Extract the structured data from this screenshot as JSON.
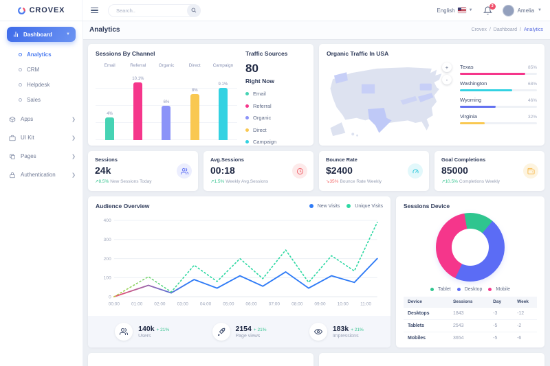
{
  "brand": {
    "name": "CROVEX"
  },
  "topbar": {
    "search_placeholder": "Search..",
    "language_label": "English",
    "notification_count": "3",
    "user_name": "Amelia"
  },
  "page_header": {
    "title": "Analytics",
    "breadcrumb": [
      "Crovex",
      "Dashboard",
      "Analytics"
    ]
  },
  "sidebar": {
    "dashboard": {
      "label": "Dashboard",
      "children": [
        {
          "label": "Analytics",
          "active": true
        },
        {
          "label": "CRM",
          "active": false
        },
        {
          "label": "Helpdesk",
          "active": false
        },
        {
          "label": "Sales",
          "active": false
        }
      ]
    },
    "items": [
      {
        "label": "Apps",
        "icon": "box-icon"
      },
      {
        "label": "UI Kit",
        "icon": "briefcase-icon"
      },
      {
        "label": "Pages",
        "icon": "pages-icon"
      },
      {
        "label": "Authentication",
        "icon": "lock-icon"
      }
    ]
  },
  "sessions_by_channel": {
    "title": "Sessions By Channel"
  },
  "traffic_sources": {
    "title": "Traffic Sources",
    "value": "80",
    "subtitle": "Right Now",
    "legend": [
      {
        "label": "Email",
        "color": "#46d3b4"
      },
      {
        "label": "Referral",
        "color": "#f5368b"
      },
      {
        "label": "Organic",
        "color": "#8b93f8"
      },
      {
        "label": "Direct",
        "color": "#f9c851"
      },
      {
        "label": "Campaign",
        "color": "#33d2e2"
      }
    ]
  },
  "organic_traffic_usa": {
    "title": "Organic Traffic In USA",
    "zoom_in": "+",
    "zoom_out": "-",
    "regions": [
      {
        "name": "Texas",
        "value": "85%",
        "pct": 85,
        "color": "#f5368b"
      },
      {
        "name": "Washington",
        "value": "68%",
        "pct": 68,
        "color": "#33d2e2"
      },
      {
        "name": "Wyoming",
        "value": "46%",
        "pct": 46,
        "color": "#6271f0"
      },
      {
        "name": "Virginia",
        "value": "32%",
        "pct": 32,
        "color": "#f9c851"
      }
    ]
  },
  "stats": [
    {
      "title": "Sessions",
      "value": "24k",
      "trend": "8.5%",
      "trend_dir": "up",
      "note": "New Sessions Today",
      "icon": "users-icon",
      "accent": "#5b6ef5",
      "accent_bg": "#eceefe"
    },
    {
      "title": "Avg.Sessions",
      "value": "00:18",
      "trend": "1.5%",
      "trend_dir": "up",
      "note": "Weekly Avg.Sessions",
      "icon": "clock-icon",
      "accent": "#f0616a",
      "accent_bg": "#fdeaea"
    },
    {
      "title": "Bounce Rate",
      "value": "$2400",
      "trend": "35%",
      "trend_dir": "down",
      "note": "Bounce Rate Weekly",
      "icon": "gauge-icon",
      "accent": "#2fc8dc",
      "accent_bg": "#e2f8fb"
    },
    {
      "title": "Goal Completions",
      "value": "85000",
      "trend": "10.5%",
      "trend_dir": "up",
      "note": "Completions Weekly",
      "icon": "wallet-icon",
      "accent": "#f7b84b",
      "accent_bg": "#fdf4e0"
    }
  ],
  "audience_overview": {
    "title": "Audience Overview",
    "footer": [
      {
        "value": "140k",
        "trend": "+ 21%",
        "label": "Users",
        "icon": "users-icon"
      },
      {
        "value": "2154",
        "trend": "+ 21%",
        "label": "Page views",
        "icon": "rocket-icon"
      },
      {
        "value": "183k",
        "trend": "+ 21%",
        "label": "Impressions",
        "icon": "eye-icon"
      }
    ]
  },
  "sessions_device": {
    "title": "Sessions Device"
  },
  "chart_data": [
    {
      "id": "sessions_by_channel",
      "type": "bar",
      "title": "Sessions By Channel",
      "categories": [
        "Email",
        "Referral",
        "Organic",
        "Direct",
        "Campaign"
      ],
      "values": [
        4,
        10.1,
        6,
        8,
        9.1
      ],
      "value_labels": [
        "4%",
        "10.1%",
        "6%",
        "8%",
        "9.1%"
      ],
      "colors": [
        "#46d3b4",
        "#f5368b",
        "#8b93f8",
        "#f9c851",
        "#33d2e2"
      ],
      "ylim": [
        0,
        12
      ],
      "unit": "%",
      "grid": true
    },
    {
      "id": "organic_traffic_usa",
      "type": "bar",
      "orientation": "horizontal",
      "title": "Organic Traffic In USA",
      "categories": [
        "Texas",
        "Washington",
        "Wyoming",
        "Virginia"
      ],
      "values": [
        85,
        68,
        46,
        32
      ],
      "unit": "%"
    },
    {
      "id": "audience_overview",
      "type": "line",
      "title": "Audience Overview",
      "x": [
        "00:00",
        "01:00",
        "02:00",
        "03:00",
        "04:00",
        "05:00",
        "06:00",
        "07:00",
        "08:00",
        "09:00",
        "10:00",
        "11:00"
      ],
      "yticks": [
        0,
        100,
        200,
        300,
        400
      ],
      "ylim": [
        0,
        420
      ],
      "grid": true,
      "legend_position": "top-right",
      "series": [
        {
          "name": "New Visits",
          "color": "#2f7bf6",
          "gradient_from": "#f0506b",
          "style": "solid",
          "values": [
            0,
            60,
            20,
            90,
            45,
            110,
            55,
            130,
            45,
            110,
            75,
            200
          ]
        },
        {
          "name": "Unique Visits",
          "color": "#2ed8a3",
          "gradient_from": "#b5d24b",
          "style": "dotted",
          "values": [
            0,
            105,
            25,
            165,
            80,
            200,
            95,
            245,
            75,
            215,
            135,
            390
          ]
        }
      ]
    },
    {
      "id": "sessions_device_donut",
      "type": "pie",
      "title": "Sessions Device",
      "labels": [
        "Tablet",
        "Desktop",
        "Mobile"
      ],
      "values": [
        14,
        46,
        40
      ],
      "colors": [
        "#2fc58f",
        "#5b6cf5",
        "#f5368b"
      ],
      "start_angle_deg": -10
    },
    {
      "id": "sessions_device_table",
      "type": "table",
      "headers": [
        "Device",
        "Sessions",
        "Day",
        "Week"
      ],
      "rows": [
        [
          "Desktops",
          "1843",
          "-3",
          "-12"
        ],
        [
          "Tablets",
          "2543",
          "-5",
          "-2"
        ],
        [
          "Mobiles",
          "3654",
          "-5",
          "-6"
        ]
      ]
    }
  ]
}
